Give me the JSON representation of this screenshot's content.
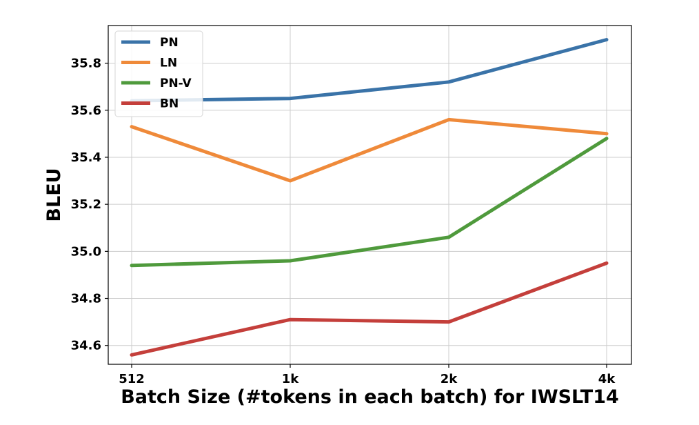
{
  "chart_data": {
    "type": "line",
    "categories": [
      "512",
      "1k",
      "2k",
      "4k"
    ],
    "series": [
      {
        "name": "PN",
        "color": "#3a73a8",
        "values": [
          35.64,
          35.65,
          35.72,
          35.9
        ]
      },
      {
        "name": "LN",
        "color": "#ef8a3a",
        "values": [
          35.53,
          35.3,
          35.56,
          35.5
        ]
      },
      {
        "name": "PN-V",
        "color": "#4f9a3c",
        "values": [
          34.94,
          34.96,
          35.06,
          35.48
        ]
      },
      {
        "name": "BN",
        "color": "#c43f3b",
        "values": [
          34.56,
          34.71,
          34.7,
          34.95
        ]
      }
    ],
    "y_ticks": [
      "34.6",
      "34.8",
      "35.0",
      "35.2",
      "35.4",
      "35.6",
      "35.8"
    ],
    "xlabel": "Batch Size (#tokens in each batch) for IWSLT14",
    "ylabel": "BLEU",
    "ylim": [
      34.52,
      35.96
    ],
    "grid": true,
    "legend_position": "top-left"
  }
}
